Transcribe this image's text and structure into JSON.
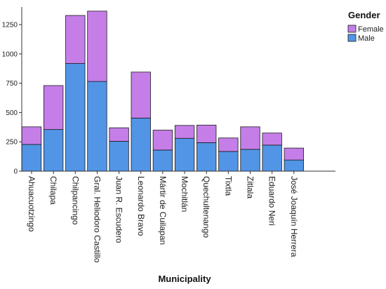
{
  "chart_data": {
    "type": "bar",
    "stacked": true,
    "title": "",
    "xlabel": "Municipality",
    "ylabel": "",
    "ylim": [
      0,
      1400
    ],
    "yticks": [
      0,
      250,
      500,
      750,
      1000,
      1250
    ],
    "ytick_labels": [
      "0",
      "250",
      "500",
      "750",
      "1000",
      "1250"
    ],
    "grid": false,
    "legend": {
      "title": "Gender",
      "position": "top-right",
      "entries": [
        "Female",
        "Male"
      ]
    },
    "categories": [
      "Ahuacuotzingo",
      "Chilapa",
      "Chilpancingo",
      "Gral. Heliodoro Castillo",
      "Juan R. Escudero",
      "Leonardo Bravo",
      "Mártir de Cuilapan",
      "Mochitlán",
      "Quechultenango",
      "Tixtla",
      "Zitlala",
      "Eduardo Neri",
      "José Joaquín Herrera"
    ],
    "series": [
      {
        "name": "Male",
        "color": "#5295e6",
        "values": [
          228,
          355,
          918,
          765,
          255,
          453,
          180,
          280,
          243,
          168,
          186,
          222,
          95
        ]
      },
      {
        "name": "Female",
        "color": "#c57ee8",
        "values": [
          150,
          375,
          410,
          600,
          115,
          392,
          170,
          110,
          150,
          115,
          192,
          103,
          102
        ]
      }
    ]
  }
}
